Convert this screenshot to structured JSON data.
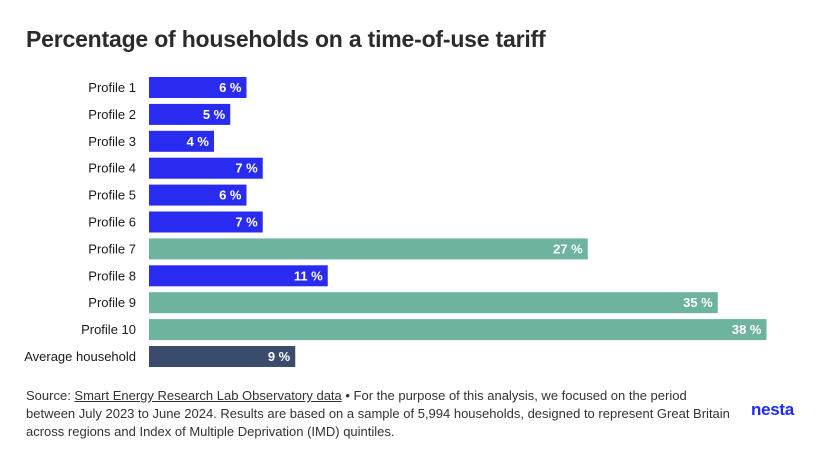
{
  "chart_data": {
    "type": "bar",
    "orientation": "horizontal",
    "title": "Percentage of households on a time-of-use tariff",
    "categories": [
      "Profile 1",
      "Profile 2",
      "Profile 3",
      "Profile 4",
      "Profile 5",
      "Profile 6",
      "Profile 7",
      "Profile 8",
      "Profile 9",
      "Profile 10",
      "Average household"
    ],
    "values": [
      6,
      5,
      4,
      7,
      6,
      7,
      27,
      11,
      35,
      38,
      9
    ],
    "value_labels": [
      "6 %",
      "5 %",
      "4 %",
      "7 %",
      "6 %",
      "7 %",
      "27 %",
      "11 %",
      "35 %",
      "38 %",
      "9 %"
    ],
    "bar_colors": [
      "#2a2bf0",
      "#2a2bf0",
      "#2a2bf0",
      "#2a2bf0",
      "#2a2bf0",
      "#2a2bf0",
      "#6db39f",
      "#2a2bf0",
      "#6db39f",
      "#6db39f",
      "#3b4b6b"
    ],
    "xlim": [
      0,
      40
    ],
    "grid": false,
    "legend": "none"
  },
  "source": {
    "prefix": "Source: ",
    "link_text": "Smart Energy Research Lab Observatory data",
    "text": " • For the purpose of this analysis, we focused on the period between July 2023 to June 2024. Results are based on a sample of 5,994 households, designed to represent Great Britain across regions and Index of Multiple Deprivation (IMD) quintiles."
  },
  "logo": "nesta",
  "colors": {
    "primary_blue": "#2a2bf0",
    "teal": "#6db39f",
    "navy": "#3b4b6b",
    "logo_blue": "#1e2bf0"
  }
}
